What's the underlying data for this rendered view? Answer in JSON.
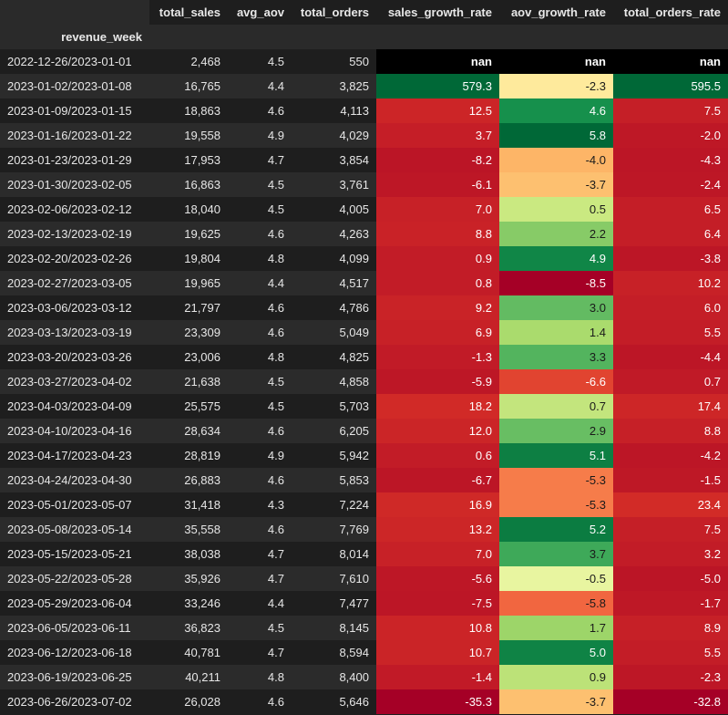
{
  "table": {
    "index_name": "revenue_week",
    "columns": [
      "total_sales",
      "avg_aov",
      "total_orders",
      "sales_growth_rate",
      "aov_growth_rate",
      "total_orders_rate"
    ],
    "gradient_columns": [
      "sales_growth_rate",
      "aov_growth_rate",
      "total_orders_rate"
    ],
    "colormap": "RdYlGn",
    "nan_color": "#000000",
    "rows": [
      {
        "week": "2022-12-26/2023-01-01",
        "values": [
          "2,468",
          "4.5",
          "550",
          "nan",
          "nan",
          "nan"
        ]
      },
      {
        "week": "2023-01-02/2023-01-08",
        "values": [
          "16,765",
          "4.4",
          "3,825",
          "579.3",
          "-2.3",
          "595.5"
        ]
      },
      {
        "week": "2023-01-09/2023-01-15",
        "values": [
          "18,863",
          "4.6",
          "4,113",
          "12.5",
          "4.6",
          "7.5"
        ]
      },
      {
        "week": "2023-01-16/2023-01-22",
        "values": [
          "19,558",
          "4.9",
          "4,029",
          "3.7",
          "5.8",
          "-2.0"
        ]
      },
      {
        "week": "2023-01-23/2023-01-29",
        "values": [
          "17,953",
          "4.7",
          "3,854",
          "-8.2",
          "-4.0",
          "-4.3"
        ]
      },
      {
        "week": "2023-01-30/2023-02-05",
        "values": [
          "16,863",
          "4.5",
          "3,761",
          "-6.1",
          "-3.7",
          "-2.4"
        ]
      },
      {
        "week": "2023-02-06/2023-02-12",
        "values": [
          "18,040",
          "4.5",
          "4,005",
          "7.0",
          "0.5",
          "6.5"
        ]
      },
      {
        "week": "2023-02-13/2023-02-19",
        "values": [
          "19,625",
          "4.6",
          "4,263",
          "8.8",
          "2.2",
          "6.4"
        ]
      },
      {
        "week": "2023-02-20/2023-02-26",
        "values": [
          "19,804",
          "4.8",
          "4,099",
          "0.9",
          "4.9",
          "-3.8"
        ]
      },
      {
        "week": "2023-02-27/2023-03-05",
        "values": [
          "19,965",
          "4.4",
          "4,517",
          "0.8",
          "-8.5",
          "10.2"
        ]
      },
      {
        "week": "2023-03-06/2023-03-12",
        "values": [
          "21,797",
          "4.6",
          "4,786",
          "9.2",
          "3.0",
          "6.0"
        ]
      },
      {
        "week": "2023-03-13/2023-03-19",
        "values": [
          "23,309",
          "4.6",
          "5,049",
          "6.9",
          "1.4",
          "5.5"
        ]
      },
      {
        "week": "2023-03-20/2023-03-26",
        "values": [
          "23,006",
          "4.8",
          "4,825",
          "-1.3",
          "3.3",
          "-4.4"
        ]
      },
      {
        "week": "2023-03-27/2023-04-02",
        "values": [
          "21,638",
          "4.5",
          "4,858",
          "-5.9",
          "-6.6",
          "0.7"
        ]
      },
      {
        "week": "2023-04-03/2023-04-09",
        "values": [
          "25,575",
          "4.5",
          "5,703",
          "18.2",
          "0.7",
          "17.4"
        ]
      },
      {
        "week": "2023-04-10/2023-04-16",
        "values": [
          "28,634",
          "4.6",
          "6,205",
          "12.0",
          "2.9",
          "8.8"
        ]
      },
      {
        "week": "2023-04-17/2023-04-23",
        "values": [
          "28,819",
          "4.9",
          "5,942",
          "0.6",
          "5.1",
          "-4.2"
        ]
      },
      {
        "week": "2023-04-24/2023-04-30",
        "values": [
          "26,883",
          "4.6",
          "5,853",
          "-6.7",
          "-5.3",
          "-1.5"
        ]
      },
      {
        "week": "2023-05-01/2023-05-07",
        "values": [
          "31,418",
          "4.3",
          "7,224",
          "16.9",
          "-5.3",
          "23.4"
        ]
      },
      {
        "week": "2023-05-08/2023-05-14",
        "values": [
          "35,558",
          "4.6",
          "7,769",
          "13.2",
          "5.2",
          "7.5"
        ]
      },
      {
        "week": "2023-05-15/2023-05-21",
        "values": [
          "38,038",
          "4.7",
          "8,014",
          "7.0",
          "3.7",
          "3.2"
        ]
      },
      {
        "week": "2023-05-22/2023-05-28",
        "values": [
          "35,926",
          "4.7",
          "7,610",
          "-5.6",
          "-0.5",
          "-5.0"
        ]
      },
      {
        "week": "2023-05-29/2023-06-04",
        "values": [
          "33,246",
          "4.4",
          "7,477",
          "-7.5",
          "-5.8",
          "-1.7"
        ]
      },
      {
        "week": "2023-06-05/2023-06-11",
        "values": [
          "36,823",
          "4.5",
          "8,145",
          "10.8",
          "1.7",
          "8.9"
        ]
      },
      {
        "week": "2023-06-12/2023-06-18",
        "values": [
          "40,781",
          "4.7",
          "8,594",
          "10.7",
          "5.0",
          "5.5"
        ]
      },
      {
        "week": "2023-06-19/2023-06-25",
        "values": [
          "40,211",
          "4.8",
          "8,400",
          "-1.4",
          "0.9",
          "-2.3"
        ]
      },
      {
        "week": "2023-06-26/2023-07-02",
        "values": [
          "26,028",
          "4.6",
          "5,646",
          "-35.3",
          "-3.7",
          "-32.8"
        ]
      }
    ]
  }
}
